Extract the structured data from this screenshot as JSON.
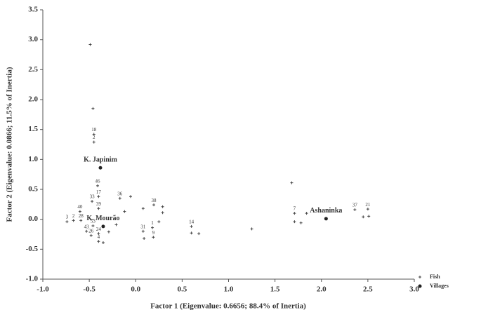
{
  "chart_data": {
    "type": "scatter",
    "xlabel": "Factor 1 (Eigenvalue: 0.6656; 88.4% of Inertia)",
    "ylabel": "Factor 2 (Eigenvalue: 0.0866; 11.5% of Inertia)",
    "xlim": [
      -1.0,
      3.0
    ],
    "ylim": [
      -1.0,
      3.5
    ],
    "xticks": [
      {
        "value": -1.0,
        "label": "-1.0"
      },
      {
        "value": -0.5,
        "label": "-0.5"
      },
      {
        "value": 0,
        "label": "0.0"
      },
      {
        "value": 0.5,
        "label": "0.5"
      },
      {
        "value": 1.0,
        "label": "1.0"
      },
      {
        "value": 1.5,
        "label": "1.5"
      },
      {
        "value": 2.0,
        "label": "2.0"
      },
      {
        "value": 2.5,
        "label": "2.5"
      },
      {
        "value": 3.0,
        "label": "3.0"
      }
    ],
    "yticks": [
      {
        "value": -1.0,
        "label": "-1.0"
      },
      {
        "value": -0.5,
        "label": "-0.5"
      },
      {
        "value": 0,
        "label": "0.0"
      },
      {
        "value": 0.5,
        "label": "0.5"
      },
      {
        "value": 1.0,
        "label": "1.0"
      },
      {
        "value": 1.5,
        "label": "1.5"
      },
      {
        "value": 2.0,
        "label": "2.0"
      },
      {
        "value": 2.5,
        "label": "2.5"
      },
      {
        "value": 3.0,
        "label": "3.0"
      },
      {
        "value": 3.5,
        "label": "3.5"
      }
    ],
    "legend": "lower right",
    "series": [
      {
        "name": "Fish",
        "marker": "plus",
        "color": "#444444",
        "x": [
          -0.49,
          -0.46,
          -0.45,
          -0.45,
          -0.41,
          -0.4,
          -0.47,
          -0.4,
          -0.17,
          -0.055,
          -0.6,
          -0.12,
          -0.74,
          -0.67,
          -0.59,
          -0.46,
          -0.53,
          -0.48,
          -0.4,
          -0.4,
          -0.35,
          -0.29,
          -0.21,
          0.195,
          0.08,
          0.29,
          0.29,
          0.25,
          0.18,
          0.08,
          0.09,
          0.19,
          0.6,
          0.6,
          0.68,
          1.25,
          1.68,
          1.71,
          1.71,
          1.78,
          1.84,
          2.36,
          2.5,
          2.45,
          2.51
        ],
        "values": [
          2.92,
          1.85,
          1.42,
          1.29,
          0.56,
          0.38,
          0.3,
          0.18,
          0.35,
          0.38,
          0.13,
          0.13,
          -0.04,
          -0.02,
          -0.02,
          -0.11,
          -0.2,
          -0.27,
          -0.24,
          -0.37,
          -0.39,
          -0.21,
          -0.09,
          0.24,
          0.18,
          0.21,
          0.11,
          -0.04,
          -0.14,
          -0.2,
          -0.32,
          -0.3,
          -0.12,
          -0.23,
          -0.24,
          -0.16,
          0.61,
          0.1,
          -0.04,
          -0.06,
          0.1,
          0.16,
          0.17,
          0.04,
          0.05
        ],
        "point_labels": [
          null,
          null,
          "18",
          "2",
          "46",
          "17",
          "33",
          "39",
          "36",
          null,
          "40",
          null,
          "3",
          "2",
          "28",
          "53",
          "43",
          "26",
          "24",
          "4",
          null,
          null,
          null,
          "38",
          null,
          null,
          null,
          null,
          "1",
          "31",
          null,
          "9",
          "14",
          null,
          null,
          null,
          null,
          "7",
          null,
          null,
          null,
          "37",
          "21",
          null,
          null
        ]
      },
      {
        "name": "Villages",
        "marker": "dot",
        "color": "#222222",
        "x": [
          -0.38,
          -0.35,
          2.05
        ],
        "values": [
          0.86,
          -0.12,
          0.01
        ],
        "point_labels": [
          "K. Japinim",
          "K. Mourão",
          "Ashaninka"
        ]
      }
    ]
  }
}
